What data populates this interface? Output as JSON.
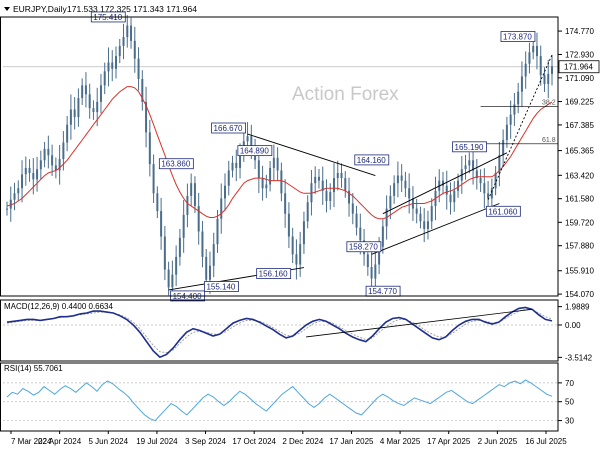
{
  "header": {
    "symbol_label": "EURJPY,Daily",
    "ohlc_text": "171.533 172.325 171.343 171.964"
  },
  "watermark": "Action Forex",
  "colors": {
    "candle": "#4a6d8c",
    "ma": "#d9322b",
    "macd": "#1f2f8f",
    "signal": "#999999",
    "rsi": "#4da6e0",
    "trendline": "#000000",
    "grid": "#d8d8d8",
    "label_text": "#1e2a7a"
  },
  "chart_data": [
    {
      "type": "line",
      "name": "price",
      "ylim": [
        154.0,
        175.8
      ],
      "y_ticks": [
        "174.770",
        "172.930",
        "171.090",
        "169.225",
        "167.385",
        "165.365",
        "163.420",
        "161.580",
        "159.720",
        "157.880",
        "155.910",
        "154.070"
      ],
      "y_tick_values": [
        174.77,
        172.93,
        171.09,
        169.225,
        167.385,
        165.365,
        163.42,
        161.58,
        159.72,
        157.88,
        155.91,
        154.07
      ],
      "current_price": "171.964",
      "current_price_value": 171.964,
      "x_ticks": [
        "7 Mar 2024",
        "22 Apr 2024",
        "5 Jun 2024",
        "19 Jul 2024",
        "3 Sep 2024",
        "17 Oct 2024",
        "2 Dec 2024",
        "17 Jan 2025",
        "4 Mar 2025",
        "17 Apr 2025",
        "2 Jun 2025",
        "16 Jul 2025"
      ],
      "closes": [
        160.8,
        161.5,
        162.0,
        162.4,
        163.5,
        164.0,
        163.6,
        163.1,
        163.9,
        164.6,
        165.5,
        165.0,
        164.2,
        163.8,
        164.7,
        166.0,
        167.4,
        168.6,
        168.0,
        169.5,
        170.5,
        169.8,
        168.7,
        168.4,
        169.2,
        170.5,
        171.6,
        172.3,
        171.8,
        172.8,
        173.6,
        174.3,
        175.2,
        174.0,
        172.6,
        171.0,
        169.2,
        166.8,
        164.3,
        162.0,
        160.6,
        158.6,
        156.0,
        154.6,
        155.6,
        157.0,
        158.5,
        160.3,
        161.8,
        162.8,
        161.0,
        159.0,
        157.0,
        155.2,
        156.3,
        158.0,
        160.0,
        161.6,
        162.6,
        163.8,
        164.4,
        164.0,
        165.1,
        166.1,
        166.5,
        165.6,
        164.6,
        163.2,
        162.4,
        162.7,
        164.0,
        164.8,
        163.8,
        162.0,
        160.4,
        158.6,
        157.2,
        156.4,
        158.0,
        159.8,
        161.3,
        162.8,
        163.3,
        163.0,
        162.2,
        161.4,
        162.1,
        163.2,
        163.6,
        163.2,
        162.2,
        161.2,
        160.4,
        159.3,
        158.3,
        157.2,
        156.2,
        155.3,
        156.4,
        157.8,
        159.4,
        160.8,
        161.8,
        162.8,
        163.4,
        163.0,
        162.4,
        161.6,
        160.8,
        160.4,
        159.8,
        159.2,
        159.8,
        161.0,
        162.2,
        163.0,
        162.6,
        161.9,
        161.3,
        162.2,
        163.0,
        163.9,
        164.2,
        164.6,
        163.8,
        163.2,
        162.8,
        162.0,
        161.6,
        162.4,
        163.6,
        165.0,
        166.2,
        167.4,
        168.2,
        169.0,
        170.0,
        171.2,
        172.2,
        173.1,
        173.6,
        172.8,
        171.3,
        170.6,
        171.4,
        172.0
      ],
      "moving_average": [
        161.0,
        161.1,
        161.2,
        161.4,
        161.6,
        161.9,
        162.2,
        162.5,
        162.8,
        163.1,
        163.4,
        163.6,
        163.7,
        163.8,
        164.0,
        164.3,
        164.6,
        165.0,
        165.4,
        165.8,
        166.2,
        166.6,
        167.0,
        167.4,
        167.8,
        168.2,
        168.6,
        169.0,
        169.4,
        169.7,
        170.0,
        170.2,
        170.4,
        170.4,
        170.3,
        170.0,
        169.5,
        168.9,
        168.2,
        167.4,
        166.6,
        165.8,
        165.0,
        164.2,
        163.4,
        162.7,
        162.1,
        161.6,
        161.2,
        161.0,
        160.8,
        160.6,
        160.4,
        160.2,
        160.1,
        160.1,
        160.2,
        160.4,
        160.7,
        161.1,
        161.6,
        162.0,
        162.4,
        162.8,
        163.0,
        163.1,
        163.2,
        163.2,
        163.2,
        163.1,
        163.0,
        163.0,
        163.0,
        163.0,
        162.9,
        162.7,
        162.5,
        162.3,
        162.1,
        162.0,
        162.0,
        162.0,
        162.1,
        162.2,
        162.3,
        162.4,
        162.4,
        162.4,
        162.4,
        162.3,
        162.2,
        162.0,
        161.8,
        161.5,
        161.2,
        160.9,
        160.6,
        160.3,
        160.1,
        160.0,
        160.0,
        160.1,
        160.3,
        160.5,
        160.7,
        160.9,
        161.0,
        161.1,
        161.2,
        161.2,
        161.2,
        161.2,
        161.3,
        161.4,
        161.6,
        161.8,
        162.0,
        162.1,
        162.2,
        162.3,
        162.5,
        162.7,
        162.9,
        163.1,
        163.2,
        163.3,
        163.3,
        163.3,
        163.3,
        163.3,
        163.5,
        163.8,
        164.1,
        164.5,
        164.9,
        165.4,
        165.9,
        166.4,
        166.9,
        167.4,
        167.9,
        168.3,
        168.6,
        168.8,
        169.0,
        169.2
      ],
      "price_labels": [
        {
          "text": "175.410",
          "value": 175.41
        },
        {
          "text": "163.860",
          "value": 163.86
        },
        {
          "text": "154.400",
          "value": 154.4
        },
        {
          "text": "155.140",
          "value": 155.14
        },
        {
          "text": "156.160",
          "value": 156.16
        },
        {
          "text": "166.670",
          "value": 166.67
        },
        {
          "text": "164.890",
          "value": 164.89
        },
        {
          "text": "164.160",
          "value": 164.16
        },
        {
          "text": "154.770",
          "value": 154.77
        },
        {
          "text": "158.270",
          "value": 158.27
        },
        {
          "text": "165.190",
          "value": 165.19
        },
        {
          "text": "161.060",
          "value": 161.06
        },
        {
          "text": "173.870",
          "value": 173.87
        }
      ],
      "fib_levels": [
        {
          "label": "38.2",
          "value": 168.82
        },
        {
          "label": "61.8",
          "value": 165.9
        }
      ]
    },
    {
      "type": "line",
      "name": "MACD",
      "title": "MACD(12,26,9) 0.4400 0.6634",
      "ylim": [
        -3.8,
        2.6
      ],
      "y_ticks": [
        "1.9889",
        "0.00",
        "-3.5142"
      ],
      "y_tick_values": [
        1.9889,
        0.0,
        -3.5142
      ],
      "macd": [
        0.3,
        0.4,
        0.5,
        0.6,
        0.6,
        0.5,
        0.6,
        0.7,
        0.9,
        0.9,
        1.0,
        1.2,
        1.3,
        1.5,
        1.5,
        1.4,
        1.3,
        1.0,
        0.6,
        0.0,
        -0.8,
        -1.8,
        -2.8,
        -3.5,
        -3.2,
        -2.5,
        -1.6,
        -0.8,
        -0.4,
        -0.6,
        -0.9,
        -1.2,
        -1.0,
        -0.4,
        0.2,
        0.5,
        0.7,
        0.6,
        0.3,
        -0.1,
        -0.5,
        -1.0,
        -1.4,
        -1.2,
        -0.6,
        0.0,
        0.4,
        0.6,
        0.4,
        0.0,
        -0.4,
        -0.9,
        -1.3,
        -1.6,
        -1.8,
        -1.2,
        -0.4,
        0.3,
        0.7,
        0.8,
        0.6,
        0.1,
        -0.4,
        -0.9,
        -1.4,
        -1.6,
        -1.3,
        -0.6,
        0.0,
        0.4,
        0.6,
        0.6,
        0.3,
        0.1,
        0.3,
        0.9,
        1.4,
        1.8,
        1.9,
        1.7,
        1.1,
        0.6,
        0.44
      ],
      "signal": [
        0.2,
        0.3,
        0.4,
        0.5,
        0.5,
        0.5,
        0.6,
        0.7,
        0.8,
        0.9,
        1.0,
        1.1,
        1.2,
        1.3,
        1.4,
        1.4,
        1.3,
        1.1,
        0.8,
        0.3,
        -0.4,
        -1.3,
        -2.2,
        -2.9,
        -3.0,
        -2.7,
        -2.0,
        -1.3,
        -0.8,
        -0.7,
        -0.8,
        -1.0,
        -1.0,
        -0.7,
        -0.2,
        0.2,
        0.5,
        0.5,
        0.4,
        0.1,
        -0.3,
        -0.7,
        -1.1,
        -1.2,
        -0.9,
        -0.4,
        0.1,
        0.4,
        0.4,
        0.2,
        -0.2,
        -0.6,
        -1.0,
        -1.3,
        -1.6,
        -1.4,
        -0.8,
        -0.2,
        0.3,
        0.6,
        0.6,
        0.3,
        -0.1,
        -0.6,
        -1.0,
        -1.3,
        -1.3,
        -0.9,
        -0.4,
        0.1,
        0.4,
        0.5,
        0.4,
        0.2,
        0.3,
        0.7,
        1.1,
        1.5,
        1.7,
        1.7,
        1.3,
        0.9,
        0.6634
      ]
    },
    {
      "type": "line",
      "name": "RSI",
      "title": "RSI(14) 55.7061",
      "ylim": [
        20,
        90
      ],
      "y_ticks": [
        "70",
        "50",
        "30"
      ],
      "y_tick_values": [
        70,
        50,
        30
      ],
      "values": [
        55,
        60,
        58,
        64,
        61,
        57,
        60,
        66,
        62,
        58,
        63,
        67,
        64,
        60,
        65,
        70,
        66,
        61,
        68,
        72,
        69,
        64,
        60,
        55,
        48,
        42,
        36,
        32,
        30,
        36,
        42,
        48,
        45,
        40,
        36,
        42,
        48,
        54,
        58,
        55,
        50,
        46,
        50,
        56,
        61,
        58,
        53,
        48,
        44,
        40,
        46,
        52,
        58,
        62,
        66,
        60,
        54,
        48,
        44,
        48,
        54,
        58,
        54,
        50,
        46,
        42,
        38,
        36,
        42,
        48,
        54,
        58,
        55,
        51,
        48,
        46,
        50,
        54,
        52,
        50,
        48,
        52,
        56,
        60,
        62,
        58,
        54,
        50,
        48,
        52,
        56,
        60,
        64,
        68,
        66,
        70,
        72,
        69,
        73,
        70,
        66,
        62,
        58,
        55.7
      ]
    }
  ]
}
